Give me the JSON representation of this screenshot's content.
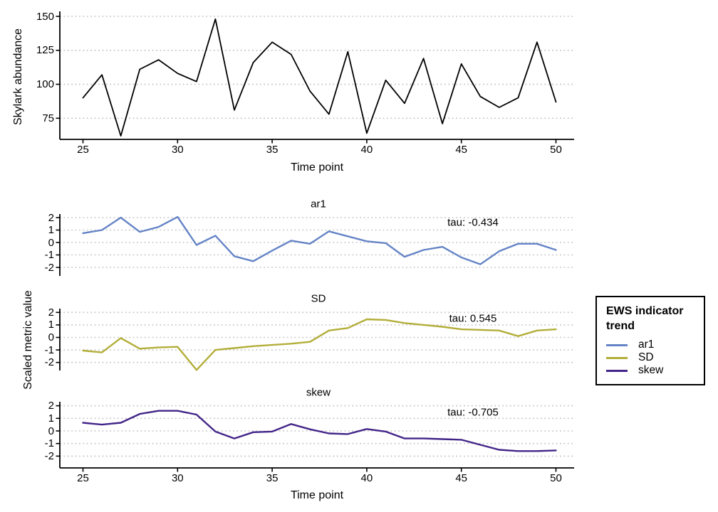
{
  "labels": {
    "facet_ylabel": "Scaled metric value",
    "xlabel": "Time point"
  },
  "legend": {
    "title": "EWS indicator trend",
    "position": "right",
    "items": [
      {
        "label": "ar1",
        "color": "#6584c6"
      },
      {
        "label": "SD",
        "color": "#b3ae39"
      },
      {
        "label": "skew",
        "color": "#432588"
      }
    ]
  },
  "style": {
    "grid_color": "#c3c3c3",
    "axis_color": "#000000",
    "background": "#ffffff",
    "grid_style": "dotted"
  },
  "chart_data": [
    {
      "type": "line",
      "name": "abundance",
      "ylabel": "Skylark abundance",
      "xlabel": "Time point",
      "color": "#000000",
      "x": [
        25,
        26,
        27,
        28,
        29,
        30,
        31,
        32,
        33,
        34,
        35,
        36,
        37,
        38,
        39,
        40,
        41,
        42,
        43,
        44,
        45,
        46,
        47,
        48,
        49,
        50
      ],
      "values": [
        90,
        107,
        62,
        111,
        118,
        108,
        102,
        148,
        81,
        116,
        131,
        122,
        95,
        78,
        124,
        64,
        103,
        86,
        119,
        71,
        115,
        91,
        83,
        90,
        131,
        87
      ],
      "yticks": [
        150,
        125,
        100,
        75
      ],
      "xticks": [
        25,
        30,
        35,
        40,
        45,
        50
      ],
      "ylim": [
        60,
        152
      ],
      "xlim": [
        25,
        50
      ],
      "grid": "dotted horizontal"
    },
    {
      "type": "line",
      "facet": "ar1",
      "tau_label": "tau: -0.434",
      "color": "#6584c6",
      "x": [
        25,
        26,
        27,
        28,
        29,
        30,
        31,
        32,
        33,
        34,
        35,
        36,
        37,
        38,
        39,
        40,
        41,
        42,
        43,
        44,
        45,
        46,
        47,
        48,
        49,
        50
      ],
      "values": [
        0.75,
        1.0,
        2.0,
        0.85,
        1.25,
        2.05,
        -0.2,
        0.55,
        -1.1,
        -1.5,
        -0.65,
        0.15,
        -0.1,
        0.9,
        0.5,
        0.1,
        -0.05,
        -1.15,
        -0.6,
        -0.35,
        -1.2,
        -1.75,
        -0.7,
        -0.1,
        -0.1,
        -0.6
      ],
      "yticks": [
        2,
        1,
        0,
        -1,
        -2
      ],
      "ylim": [
        -2.7,
        2.3
      ],
      "xlim": [
        25,
        50
      ]
    },
    {
      "type": "line",
      "facet": "SD",
      "tau_label": "tau: 0.545",
      "color": "#b3ae39",
      "x": [
        25,
        26,
        27,
        28,
        29,
        30,
        31,
        32,
        33,
        34,
        35,
        36,
        37,
        38,
        39,
        40,
        41,
        42,
        43,
        44,
        45,
        46,
        47,
        48,
        49,
        50
      ],
      "values": [
        -1.05,
        -1.2,
        -0.05,
        -0.9,
        -0.8,
        -0.75,
        -2.6,
        -1.0,
        -0.85,
        -0.7,
        -0.6,
        -0.5,
        -0.35,
        0.55,
        0.75,
        1.45,
        1.4,
        1.15,
        1.0,
        0.85,
        0.65,
        0.6,
        0.55,
        0.1,
        0.55,
        0.65
      ],
      "yticks": [
        2,
        1,
        0,
        -1,
        -2
      ],
      "ylim": [
        -2.7,
        2.3
      ],
      "xlim": [
        25,
        50
      ]
    },
    {
      "type": "line",
      "facet": "skew",
      "tau_label": "tau: -0.705",
      "color": "#432588",
      "x": [
        25,
        26,
        27,
        28,
        29,
        30,
        31,
        32,
        33,
        34,
        35,
        36,
        37,
        38,
        39,
        40,
        41,
        42,
        43,
        44,
        45,
        46,
        47,
        48,
        49,
        50
      ],
      "values": [
        0.65,
        0.5,
        0.65,
        1.35,
        1.6,
        1.6,
        1.3,
        -0.05,
        -0.6,
        -0.1,
        -0.05,
        0.55,
        0.13,
        -0.2,
        -0.25,
        0.15,
        -0.05,
        -0.6,
        -0.6,
        -0.65,
        -0.7,
        -1.1,
        -1.5,
        -1.6,
        -1.6,
        -1.55
      ],
      "yticks": [
        2,
        1,
        0,
        -1,
        -2
      ],
      "xticks": [
        25,
        30,
        35,
        40,
        45,
        50
      ],
      "ylim": [
        -2.7,
        2.3
      ],
      "xlim": [
        25,
        50
      ]
    }
  ]
}
